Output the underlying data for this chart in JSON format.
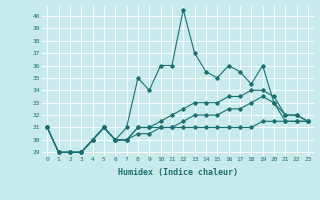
{
  "xlabel": "Humidex (Indice chaleur)",
  "ylabel": "",
  "background_color": "#c8eaea",
  "grid_color": "#ffffff",
  "line_color": "#1a7070",
  "xlim": [
    -0.5,
    23.5
  ],
  "ylim": [
    28.7,
    40.8
  ],
  "yticks": [
    29,
    30,
    31,
    32,
    33,
    34,
    35,
    36,
    37,
    38,
    39,
    40
  ],
  "xticks": [
    0,
    1,
    2,
    3,
    4,
    5,
    6,
    7,
    8,
    9,
    10,
    11,
    12,
    13,
    14,
    15,
    16,
    17,
    18,
    19,
    20,
    21,
    22,
    23
  ],
  "series": [
    [
      31,
      29,
      29,
      29,
      30,
      31,
      30,
      31,
      35,
      34,
      36,
      36,
      40.5,
      37,
      35.5,
      35,
      36,
      35.5,
      34.5,
      36,
      33,
      32,
      32,
      31.5
    ],
    [
      31,
      29,
      29,
      29,
      30,
      31,
      30,
      30,
      31,
      31,
      31.5,
      32,
      32.5,
      33,
      33,
      33,
      33.5,
      33.5,
      34,
      34,
      33.5,
      32,
      32,
      31.5
    ],
    [
      31,
      29,
      29,
      29,
      30,
      31,
      30,
      30,
      31,
      31,
      31,
      31,
      31.5,
      32,
      32,
      32,
      32.5,
      32.5,
      33,
      33.5,
      33,
      31.5,
      31.5,
      31.5
    ],
    [
      31,
      29,
      29,
      29,
      30,
      31,
      30,
      30,
      30.5,
      30.5,
      31,
      31,
      31,
      31,
      31,
      31,
      31,
      31,
      31,
      31.5,
      31.5,
      31.5,
      31.5,
      31.5
    ]
  ]
}
